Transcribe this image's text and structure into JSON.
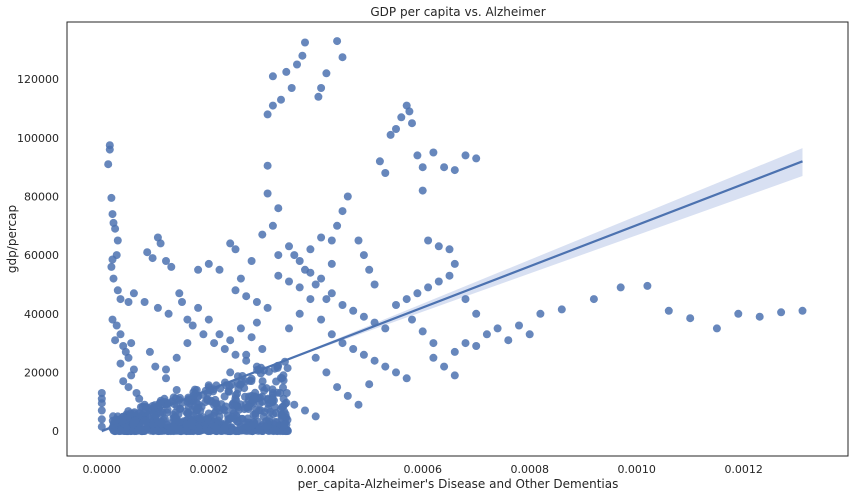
{
  "chart_data": {
    "type": "scatter",
    "title": "GDP per capita vs. Alzheimer",
    "xlabel": "per_capita-Alzheimer's Disease and Other Dementias",
    "ylabel": "gdp/percap",
    "xlim": [
      -6.5e-05,
      0.001395
    ],
    "ylim": [
      -8500,
      139500
    ],
    "xticks": [
      0.0,
      0.0002,
      0.0004,
      0.0006,
      0.0008,
      0.001,
      0.0012
    ],
    "xtick_labels": [
      "0.0000",
      "0.0002",
      "0.0004",
      "0.0006",
      "0.0008",
      "0.0010",
      "0.0012"
    ],
    "yticks": [
      0,
      20000,
      40000,
      60000,
      80000,
      100000,
      120000
    ],
    "ytick_labels": [
      "0",
      "20000",
      "40000",
      "60000",
      "80000",
      "100000",
      "120000"
    ],
    "grid": false,
    "colors": {
      "points": "#4c72b0",
      "line": "#4c72b0",
      "band": "#c7d3ec"
    },
    "regression": {
      "x": [
        0.0,
        0.00131
      ],
      "y": [
        0,
        92000
      ],
      "ci_upper_end": 96500,
      "ci_lower_end": 87000
    },
    "series": [
      {
        "name": "observations",
        "points": [
          [
            0.0,
            13000
          ],
          [
            0.0,
            11000
          ],
          [
            0.0,
            9500
          ],
          [
            0.0,
            7000
          ],
          [
            0.0,
            4000
          ],
          [
            0.0,
            1500
          ],
          [
            1.5e-05,
            97500
          ],
          [
            1.5e-05,
            96000
          ],
          [
            1.2e-05,
            91000
          ],
          [
            1.8e-05,
            79500
          ],
          [
            2e-05,
            74000
          ],
          [
            2.2e-05,
            71000
          ],
          [
            2.5e-05,
            69000
          ],
          [
            3e-05,
            65000
          ],
          [
            2.8e-05,
            60000
          ],
          [
            2e-05,
            58500
          ],
          [
            1.8e-05,
            56000
          ],
          [
            2.2e-05,
            52000
          ],
          [
            3e-05,
            48000
          ],
          [
            3.5e-05,
            45000
          ],
          [
            2e-05,
            38000
          ],
          [
            2.8e-05,
            36000
          ],
          [
            3.5e-05,
            33000
          ],
          [
            2.5e-05,
            31000
          ],
          [
            4e-05,
            29000
          ],
          [
            4.5e-05,
            27000
          ],
          [
            5e-05,
            25000
          ],
          [
            3.5e-05,
            23000
          ],
          [
            6e-05,
            21000
          ],
          [
            5.5e-05,
            19000
          ],
          [
            4e-05,
            17000
          ],
          [
            5e-05,
            15000
          ],
          [
            6.5e-05,
            13000
          ],
          [
            7e-05,
            11000
          ],
          [
            8e-05,
            9000
          ],
          [
            9e-05,
            7000
          ],
          [
            0.0001,
            5000
          ],
          [
            0.00011,
            3000
          ],
          [
            6e-05,
            2000
          ],
          [
            5e-05,
            44000
          ],
          [
            6e-05,
            47000
          ],
          [
            5.5e-05,
            30000
          ],
          [
            9e-05,
            27000
          ],
          [
            0.0001,
            22000
          ],
          [
            0.00012,
            18000
          ],
          [
            0.00014,
            14000
          ],
          [
            0.00016,
            10000
          ],
          [
            0.00018,
            8000
          ],
          [
            0.0002,
            6000
          ],
          [
            0.00022,
            5000
          ],
          [
            0.00025,
            4000
          ],
          [
            0.00027,
            3000
          ],
          [
            0.0003,
            2000
          ],
          [
            0.00015,
            2000
          ],
          [
            0.000105,
            66000
          ],
          [
            0.00011,
            64000
          ],
          [
            8.5e-05,
            61000
          ],
          [
            9.5e-05,
            59000
          ],
          [
            0.00012,
            58000
          ],
          [
            0.00013,
            56000
          ],
          [
            8e-05,
            44000
          ],
          [
            0.000105,
            42000
          ],
          [
            0.000125,
            40000
          ],
          [
            0.000145,
            47000
          ],
          [
            0.00015,
            44000
          ],
          [
            0.00016,
            38000
          ],
          [
            0.00017,
            36000
          ],
          [
            0.00018,
            55000
          ],
          [
            0.0002,
            57000
          ],
          [
            0.00022,
            55000
          ],
          [
            0.00024,
            64000
          ],
          [
            0.00025,
            62000
          ],
          [
            0.00019,
            33000
          ],
          [
            0.00021,
            30000
          ],
          [
            0.00023,
            28000
          ],
          [
            0.00025,
            26000
          ],
          [
            0.00027,
            24000
          ],
          [
            0.00029,
            22000
          ],
          [
            0.00031,
            81000
          ],
          [
            0.00033,
            76000
          ],
          [
            0.00032,
            70000
          ],
          [
            0.0003,
            67000
          ],
          [
            0.00028,
            58000
          ],
          [
            0.00026,
            52000
          ],
          [
            0.00031,
            90500
          ],
          [
            0.00031,
            108000
          ],
          [
            0.00032,
            111000
          ],
          [
            0.000335,
            113000
          ],
          [
            0.000355,
            117000
          ],
          [
            0.00032,
            121000
          ],
          [
            0.000345,
            122500
          ],
          [
            0.000365,
            125000
          ],
          [
            0.00038,
            132500
          ],
          [
            0.000375,
            128000
          ],
          [
            0.000405,
            114000
          ],
          [
            0.00041,
            117000
          ],
          [
            0.00042,
            122000
          ],
          [
            0.00044,
            133000
          ],
          [
            0.00045,
            127500
          ],
          [
            0.00036,
            60000
          ],
          [
            0.00038,
            55000
          ],
          [
            0.0004,
            50000
          ],
          [
            0.00042,
            45000
          ],
          [
            0.00043,
            65000
          ],
          [
            0.00044,
            70000
          ],
          [
            0.00045,
            75000
          ],
          [
            0.00046,
            80000
          ],
          [
            0.00048,
            65000
          ],
          [
            0.00049,
            60000
          ],
          [
            0.0005,
            55000
          ],
          [
            0.00051,
            50000
          ],
          [
            0.00052,
            92000
          ],
          [
            0.00053,
            88000
          ],
          [
            0.00054,
            101000
          ],
          [
            0.00055,
            103000
          ],
          [
            0.00056,
            107000
          ],
          [
            0.00057,
            111000
          ],
          [
            0.000575,
            109000
          ],
          [
            0.00058,
            105000
          ],
          [
            0.00059,
            94000
          ],
          [
            0.0006,
            90000
          ],
          [
            0.00062,
            95000
          ],
          [
            0.00064,
            90000
          ],
          [
            0.00066,
            89000
          ],
          [
            0.00068,
            94000
          ],
          [
            0.0007,
            93000
          ],
          [
            0.0006,
            82000
          ],
          [
            0.00061,
            65000
          ],
          [
            0.00063,
            63000
          ],
          [
            0.00065,
            62000
          ],
          [
            0.00066,
            57000
          ],
          [
            0.00068,
            45000
          ],
          [
            0.0007,
            40000
          ],
          [
            0.00072,
            33000
          ],
          [
            0.00074,
            35000
          ],
          [
            0.00076,
            31000
          ],
          [
            0.00078,
            36000
          ],
          [
            0.0008,
            33000
          ],
          [
            0.00082,
            40000
          ],
          [
            0.00086,
            41500
          ],
          [
            0.00092,
            45000
          ],
          [
            0.00097,
            49000
          ],
          [
            0.00102,
            49500
          ],
          [
            0.00106,
            41000
          ],
          [
            0.0011,
            38500
          ],
          [
            0.00115,
            35000
          ],
          [
            0.00119,
            40000
          ],
          [
            0.00123,
            39000
          ],
          [
            0.00127,
            40500
          ],
          [
            0.00131,
            41000
          ],
          [
            0.00066,
            27000
          ],
          [
            0.00068,
            30000
          ],
          [
            0.0007,
            29000
          ],
          [
            0.00064,
            22000
          ],
          [
            0.00066,
            19000
          ],
          [
            0.00062,
            25000
          ],
          [
            0.00035,
            35000
          ],
          [
            0.00037,
            40000
          ],
          [
            0.00039,
            45000
          ],
          [
            0.00041,
            38000
          ],
          [
            0.00043,
            33000
          ],
          [
            0.00045,
            30000
          ],
          [
            0.00047,
            28000
          ],
          [
            0.00049,
            26000
          ],
          [
            0.00051,
            24000
          ],
          [
            0.00053,
            22000
          ],
          [
            0.00055,
            20000
          ],
          [
            0.00057,
            18000
          ],
          [
            0.0003,
            15000
          ],
          [
            0.00032,
            13000
          ],
          [
            0.00034,
            11000
          ],
          [
            0.00036,
            9000
          ],
          [
            0.00038,
            7000
          ],
          [
            0.0004,
            5000
          ],
          [
            0.00024,
            20000
          ],
          [
            0.00026,
            16000
          ],
          [
            0.00028,
            12000
          ],
          [
            0.0003,
            10000
          ],
          [
            0.0002,
            15000
          ],
          [
            0.00018,
            12000
          ],
          [
            0.00016,
            6000
          ],
          [
            0.00014,
            4000
          ],
          [
            0.00012,
            1000
          ],
          [
            0.0001,
            1500
          ],
          [
            8e-05,
            500
          ],
          [
            6e-05,
            1000
          ],
          [
            0.00025,
            48000
          ],
          [
            0.00027,
            46000
          ],
          [
            0.00029,
            44000
          ],
          [
            0.00031,
            42000
          ],
          [
            0.00033,
            53000
          ],
          [
            0.00035,
            51000
          ],
          [
            0.00037,
            49000
          ],
          [
            0.00039,
            54000
          ],
          [
            0.00041,
            52000
          ],
          [
            0.00043,
            47000
          ],
          [
            0.00045,
            43000
          ],
          [
            0.00047,
            41000
          ],
          [
            0.00049,
            39000
          ],
          [
            0.00051,
            37000
          ],
          [
            0.00053,
            35000
          ],
          [
            0.00055,
            43000
          ],
          [
            0.00057,
            45000
          ],
          [
            0.00059,
            47000
          ],
          [
            0.00061,
            49000
          ],
          [
            0.00063,
            51000
          ],
          [
            0.00065,
            53000
          ],
          [
            0.00058,
            38000
          ],
          [
            0.0006,
            34000
          ],
          [
            0.00062,
            30000
          ],
          [
            0.0004,
            25000
          ],
          [
            0.00042,
            20000
          ],
          [
            0.00044,
            15000
          ],
          [
            0.00046,
            12000
          ],
          [
            0.00048,
            9000
          ],
          [
            0.0005,
            16000
          ],
          [
            0.00022,
            33000
          ],
          [
            0.0002,
            38000
          ],
          [
            0.00018,
            42000
          ],
          [
            0.00016,
            30000
          ],
          [
            0.00014,
            25000
          ],
          [
            0.00012,
            21000
          ],
          [
            0.00033,
            60000
          ],
          [
            0.00035,
            63000
          ],
          [
            0.00037,
            58000
          ],
          [
            0.00039,
            62000
          ],
          [
            0.00041,
            66000
          ],
          [
            0.00043,
            57000
          ],
          [
            0.00028,
            32000
          ],
          [
            0.00029,
            37000
          ],
          [
            0.0003,
            28000
          ],
          [
            0.00027,
            26000
          ],
          [
            0.00026,
            35000
          ],
          [
            0.00024,
            31000
          ]
        ]
      }
    ]
  }
}
